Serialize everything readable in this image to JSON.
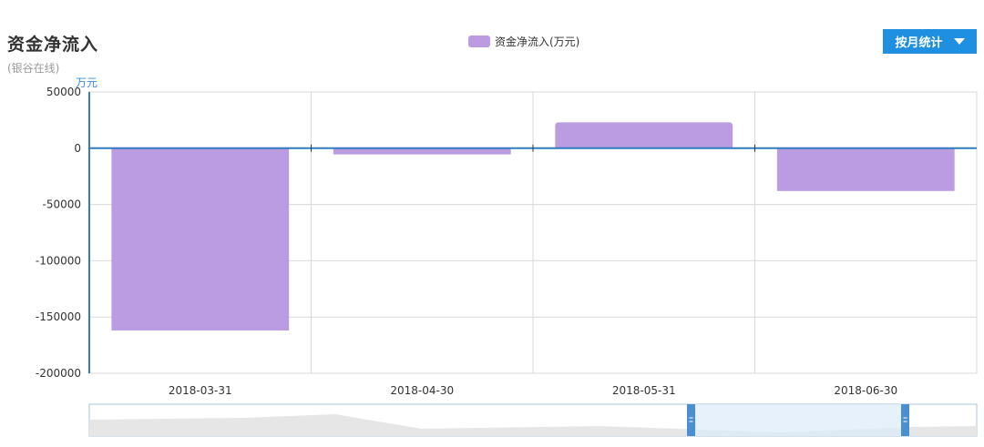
{
  "title": "资金净流入",
  "subtitle": "(银谷在线)",
  "legend_label": "资金净流入(万元)",
  "button": {
    "label": "按月统计",
    "caret_icon": "caret-down-icon"
  },
  "colors": {
    "bar": "#bb9be1",
    "axis": "#2f7dc0",
    "grid": "#d9d9d9",
    "button": "#1e8fe1",
    "unit": "#3a8cd8"
  },
  "chart_data": {
    "type": "bar",
    "title": "资金净流入",
    "ylabel": "万元",
    "xlabel": "",
    "categories": [
      "2018-03-31",
      "2018-04-30",
      "2018-05-31",
      "2018-06-30"
    ],
    "series": [
      {
        "name": "资金净流入(万元)",
        "values": [
          -162000,
          -5500,
          23000,
          -38000
        ]
      }
    ],
    "ylim": [
      -200000,
      50000
    ],
    "yticks": [
      50000,
      0,
      -50000,
      -100000,
      -150000,
      -200000
    ],
    "grid": true,
    "legend_position": "top-center"
  }
}
